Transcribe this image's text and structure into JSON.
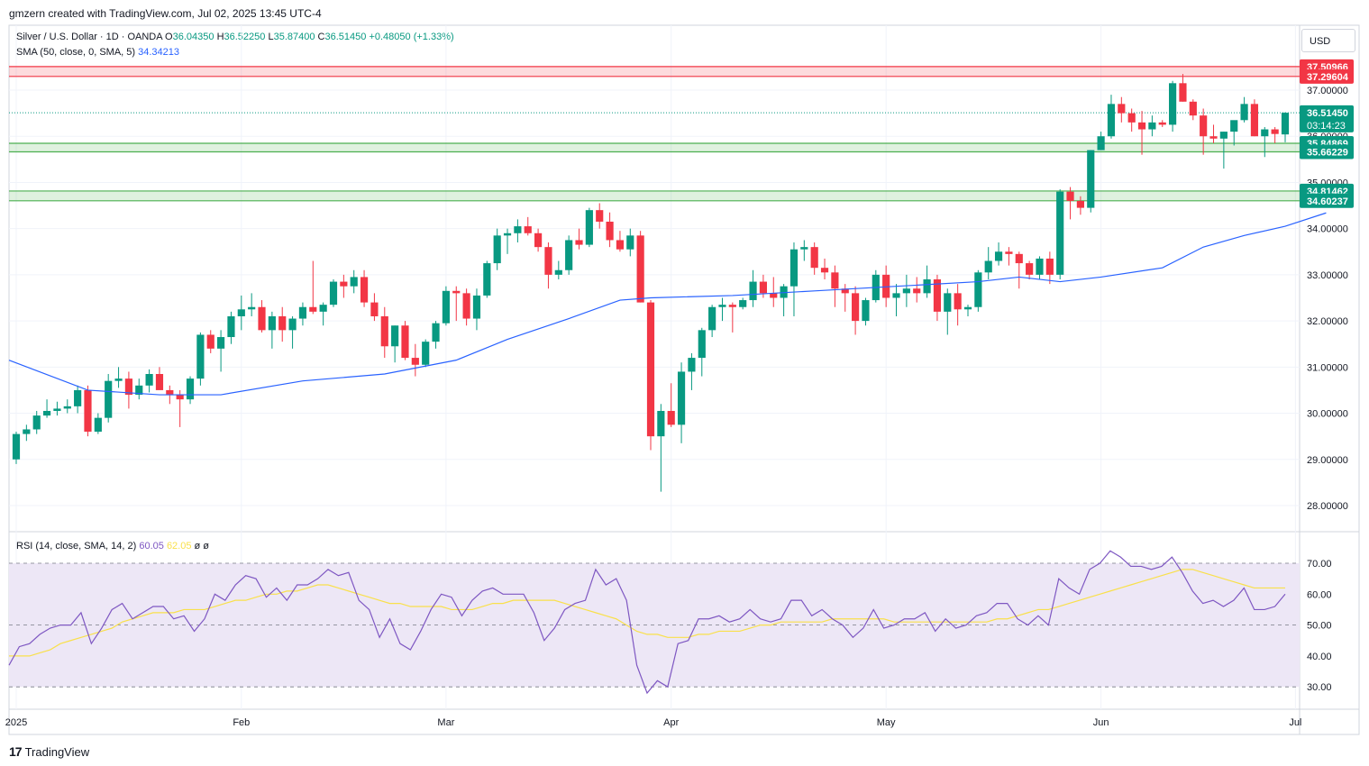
{
  "header": {
    "text": "gmzern created with TradingView.com, Jul 02, 2025 13:45 UTC-4"
  },
  "legend": {
    "symbol": "Silver / U.S. Dollar · 1D · OANDA",
    "o_label": "O",
    "o": "36.04350",
    "h_label": "H",
    "h": "36.52250",
    "l_label": "L",
    "l": "35.87400",
    "c_label": "C",
    "c": "36.51450",
    "change": "+0.48050 (+1.33%)",
    "sma_label": "SMA (50, close, 0, SMA, 5)",
    "sma_value": "34.34213",
    "rsi_label": "RSI (14, close, SMA, 14, 2)",
    "rsi_value": "60.05",
    "rsi_ma_value": "62.05",
    "rsi_extra": "ø ø"
  },
  "currency": "USD",
  "price_axis": {
    "ticks": [
      "37.00000",
      "36.00000",
      "35.00000",
      "34.00000",
      "33.00000",
      "32.00000",
      "31.00000",
      "30.00000",
      "29.00000",
      "28.00000"
    ],
    "tick_values": [
      37,
      36,
      35,
      34,
      33,
      32,
      31,
      30,
      29,
      28
    ],
    "labels": [
      {
        "text": "37.50966",
        "value": 37.50966,
        "color": "#f23645"
      },
      {
        "text": "37.29604",
        "value": 37.29604,
        "color": "#f23645"
      },
      {
        "text": "36.51450",
        "value": 36.5145,
        "color": "#089981",
        "sub": "03:14:23"
      },
      {
        "text": "35.84869",
        "value": 35.84869,
        "color": "#089981"
      },
      {
        "text": "35.66229",
        "value": 35.66229,
        "color": "#089981"
      },
      {
        "text": "34.81462",
        "value": 34.81462,
        "color": "#089981"
      },
      {
        "text": "34.60237",
        "value": 34.60237,
        "color": "#089981"
      }
    ]
  },
  "rsi_axis": {
    "ticks": [
      "70.00",
      "60.00",
      "50.00",
      "40.00",
      "30.00"
    ],
    "tick_values": [
      70,
      60,
      50,
      40,
      30
    ]
  },
  "time_axis": [
    "2025",
    "Feb",
    "Mar",
    "Apr",
    "May",
    "Jun",
    "Jul"
  ],
  "zones": [
    {
      "top": 37.50966,
      "bottom": 37.29604,
      "kind": "resistance"
    },
    {
      "top": 35.84869,
      "bottom": 35.66229,
      "kind": "support"
    },
    {
      "top": 34.81462,
      "bottom": 34.60237,
      "kind": "support"
    }
  ],
  "colors": {
    "up": "#089981",
    "down": "#f23645",
    "sma": "#2962ff",
    "rsi": "#7e57c2",
    "rsi_ma": "#f9e04b",
    "rsi_band": "#ede7f6"
  },
  "chart_data": {
    "type": "candlestick",
    "title": "Silver / U.S. Dollar · 1D · OANDA",
    "ylabel": "USD",
    "ylim": [
      27.3,
      38.2
    ],
    "candles": [
      [
        29.0,
        29.6,
        28.9,
        29.55
      ],
      [
        29.55,
        29.75,
        29.4,
        29.65
      ],
      [
        29.65,
        30.05,
        29.55,
        29.95
      ],
      [
        29.95,
        30.3,
        29.9,
        30.05
      ],
      [
        30.05,
        30.25,
        29.95,
        30.1
      ],
      [
        30.1,
        30.3,
        30.0,
        30.15
      ],
      [
        30.15,
        30.6,
        30.0,
        30.5
      ],
      [
        30.5,
        30.6,
        29.5,
        29.6
      ],
      [
        29.6,
        30.0,
        29.55,
        29.9
      ],
      [
        29.9,
        30.85,
        29.8,
        30.7
      ],
      [
        30.7,
        31.0,
        30.55,
        30.75
      ],
      [
        30.75,
        30.9,
        30.1,
        30.4
      ],
      [
        30.4,
        30.75,
        30.3,
        30.6
      ],
      [
        30.6,
        30.95,
        30.45,
        30.85
      ],
      [
        30.85,
        31.0,
        30.6,
        30.5
      ],
      [
        30.5,
        30.6,
        30.2,
        30.4
      ],
      [
        30.4,
        30.5,
        29.7,
        30.3
      ],
      [
        30.3,
        30.8,
        30.2,
        30.75
      ],
      [
        30.75,
        31.75,
        30.6,
        31.7
      ],
      [
        31.7,
        31.8,
        31.3,
        31.4
      ],
      [
        31.4,
        31.8,
        30.9,
        31.65
      ],
      [
        31.65,
        32.2,
        31.5,
        32.1
      ],
      [
        32.1,
        32.55,
        31.8,
        32.25
      ],
      [
        32.25,
        32.6,
        32.1,
        32.3
      ],
      [
        32.3,
        32.45,
        31.75,
        31.8
      ],
      [
        31.8,
        32.2,
        31.4,
        32.1
      ],
      [
        32.1,
        32.3,
        31.55,
        31.8
      ],
      [
        31.8,
        32.1,
        31.4,
        32.05
      ],
      [
        32.05,
        32.4,
        31.9,
        32.3
      ],
      [
        32.3,
        33.3,
        32.15,
        32.2
      ],
      [
        32.2,
        32.4,
        31.9,
        32.35
      ],
      [
        32.35,
        32.9,
        32.3,
        32.85
      ],
      [
        32.85,
        33.0,
        32.5,
        32.75
      ],
      [
        32.75,
        33.1,
        32.6,
        32.95
      ],
      [
        32.95,
        33.1,
        32.3,
        32.4
      ],
      [
        32.4,
        32.6,
        32.0,
        32.1
      ],
      [
        32.1,
        32.3,
        31.2,
        31.45
      ],
      [
        31.45,
        31.9,
        31.1,
        31.9
      ],
      [
        31.9,
        32.0,
        31.15,
        31.2
      ],
      [
        31.2,
        31.5,
        30.8,
        31.05
      ],
      [
        31.05,
        31.6,
        31.0,
        31.55
      ],
      [
        31.55,
        32.0,
        31.4,
        31.95
      ],
      [
        31.95,
        32.75,
        31.9,
        32.65
      ],
      [
        32.65,
        32.75,
        32.0,
        32.6
      ],
      [
        32.6,
        32.7,
        31.9,
        32.05
      ],
      [
        32.05,
        32.7,
        31.8,
        32.55
      ],
      [
        32.55,
        33.3,
        32.5,
        33.25
      ],
      [
        33.25,
        34.0,
        33.1,
        33.85
      ],
      [
        33.85,
        34.0,
        33.45,
        33.9
      ],
      [
        33.9,
        34.2,
        33.7,
        34.05
      ],
      [
        34.05,
        34.25,
        33.85,
        33.9
      ],
      [
        33.9,
        34.0,
        33.5,
        33.6
      ],
      [
        33.6,
        33.7,
        32.7,
        33.0
      ],
      [
        33.0,
        33.3,
        32.9,
        33.1
      ],
      [
        33.1,
        33.85,
        33.0,
        33.75
      ],
      [
        33.75,
        34.0,
        33.55,
        33.65
      ],
      [
        33.65,
        34.45,
        33.6,
        34.4
      ],
      [
        34.4,
        34.55,
        34.0,
        34.15
      ],
      [
        34.15,
        34.35,
        33.6,
        33.75
      ],
      [
        33.75,
        33.95,
        33.5,
        33.55
      ],
      [
        33.55,
        34.0,
        33.4,
        33.85
      ],
      [
        33.85,
        33.95,
        32.4,
        32.4
      ],
      [
        32.4,
        32.45,
        29.2,
        29.5
      ],
      [
        29.5,
        30.2,
        28.3,
        30.05
      ],
      [
        30.05,
        30.65,
        29.7,
        29.75
      ],
      [
        29.75,
        31.1,
        29.35,
        30.9
      ],
      [
        30.9,
        31.3,
        30.5,
        31.2
      ],
      [
        31.2,
        31.85,
        30.8,
        31.8
      ],
      [
        31.8,
        32.35,
        31.65,
        32.3
      ],
      [
        32.3,
        32.5,
        32.0,
        32.35
      ],
      [
        32.35,
        32.4,
        31.75,
        32.3
      ],
      [
        32.3,
        32.5,
        32.25,
        32.45
      ],
      [
        32.45,
        33.1,
        32.3,
        32.85
      ],
      [
        32.85,
        33.0,
        32.5,
        32.6
      ],
      [
        32.6,
        32.95,
        32.3,
        32.5
      ],
      [
        32.5,
        32.8,
        32.1,
        32.75
      ],
      [
        32.75,
        33.7,
        32.1,
        33.55
      ],
      [
        33.55,
        33.75,
        33.3,
        33.6
      ],
      [
        33.6,
        33.7,
        33.0,
        33.15
      ],
      [
        33.15,
        33.35,
        32.9,
        33.05
      ],
      [
        33.05,
        33.2,
        32.3,
        32.7
      ],
      [
        32.7,
        32.8,
        32.2,
        32.6
      ],
      [
        32.6,
        32.75,
        31.7,
        32.0
      ],
      [
        32.0,
        32.5,
        31.9,
        32.45
      ],
      [
        32.45,
        33.1,
        32.4,
        33.0
      ],
      [
        33.0,
        33.2,
        32.3,
        32.5
      ],
      [
        32.5,
        32.8,
        32.1,
        32.6
      ],
      [
        32.6,
        33.0,
        32.3,
        32.7
      ],
      [
        32.7,
        32.95,
        32.4,
        32.6
      ],
      [
        32.6,
        33.2,
        32.5,
        32.9
      ],
      [
        32.9,
        33.0,
        32.0,
        32.2
      ],
      [
        32.2,
        32.7,
        31.7,
        32.6
      ],
      [
        32.6,
        32.8,
        31.9,
        32.25
      ],
      [
        32.25,
        32.35,
        32.1,
        32.3
      ],
      [
        32.3,
        33.1,
        32.2,
        33.05
      ],
      [
        33.05,
        33.6,
        32.9,
        33.3
      ],
      [
        33.3,
        33.7,
        33.2,
        33.5
      ],
      [
        33.5,
        33.6,
        33.2,
        33.45
      ],
      [
        33.45,
        33.5,
        32.7,
        33.25
      ],
      [
        33.25,
        33.3,
        32.9,
        33.0
      ],
      [
        33.0,
        33.4,
        32.9,
        33.35
      ],
      [
        33.35,
        33.5,
        32.8,
        33.0
      ],
      [
        33.0,
        34.85,
        32.9,
        34.8
      ],
      [
        34.8,
        34.9,
        34.2,
        34.6
      ],
      [
        34.6,
        34.7,
        34.3,
        34.45
      ],
      [
        34.45,
        35.7,
        34.35,
        35.7
      ],
      [
        35.7,
        36.1,
        35.7,
        36.0
      ],
      [
        36.0,
        36.9,
        35.95,
        36.7
      ],
      [
        36.7,
        36.85,
        36.3,
        36.5
      ],
      [
        36.5,
        36.6,
        36.1,
        36.3
      ],
      [
        36.3,
        36.55,
        35.6,
        36.15
      ],
      [
        36.15,
        36.45,
        36.0,
        36.3
      ],
      [
        36.3,
        36.35,
        36.2,
        36.25
      ],
      [
        36.25,
        37.2,
        36.1,
        37.15
      ],
      [
        37.15,
        37.35,
        36.75,
        36.75
      ],
      [
        36.75,
        36.8,
        36.35,
        36.45
      ],
      [
        36.45,
        36.6,
        35.6,
        36.0
      ],
      [
        36.0,
        36.25,
        35.85,
        35.95
      ],
      [
        35.95,
        36.1,
        35.3,
        36.1
      ],
      [
        36.1,
        36.3,
        35.8,
        36.35
      ],
      [
        36.35,
        36.85,
        36.3,
        36.7
      ],
      [
        36.7,
        36.8,
        36.0,
        36.0
      ],
      [
        36.0,
        36.2,
        35.55,
        36.15
      ],
      [
        36.15,
        36.2,
        35.85,
        36.05
      ],
      [
        36.04,
        36.52,
        35.87,
        36.51
      ]
    ],
    "sma": {
      "name": "SMA (50, close, 0, SMA, 5)",
      "points": [
        [
          0,
          31.15
        ],
        [
          7,
          30.5
        ],
        [
          14,
          30.4
        ],
        [
          20,
          30.4
        ],
        [
          28,
          30.7
        ],
        [
          36,
          30.85
        ],
        [
          43,
          31.15
        ],
        [
          48,
          31.6
        ],
        [
          54,
          32.05
        ],
        [
          59,
          32.45
        ],
        [
          62,
          32.5
        ],
        [
          70,
          32.55
        ],
        [
          78,
          32.65
        ],
        [
          86,
          32.75
        ],
        [
          94,
          32.85
        ],
        [
          98,
          32.95
        ],
        [
          102,
          32.85
        ],
        [
          106,
          32.95
        ],
        [
          112,
          33.15
        ],
        [
          116,
          33.6
        ],
        [
          120,
          33.85
        ],
        [
          124,
          34.05
        ],
        [
          128,
          34.34
        ]
      ]
    },
    "rsi": {
      "name": "RSI (14, close, SMA, 14, 2)",
      "ylim": [
        25,
        82
      ],
      "values": [
        37,
        43,
        44,
        47,
        49,
        50,
        50,
        54,
        44,
        49,
        55,
        57,
        52,
        54,
        56,
        56,
        52,
        53,
        48,
        52,
        60,
        58,
        63,
        66,
        65,
        59,
        62,
        58,
        63,
        63,
        65,
        68,
        66,
        67,
        58,
        55,
        46,
        52,
        44,
        42,
        48,
        55,
        60,
        59,
        53,
        58,
        61,
        62,
        60,
        60,
        60,
        54,
        45,
        49,
        55,
        57,
        58,
        68,
        63,
        65,
        58,
        37,
        28,
        32,
        30,
        44,
        45,
        52,
        52,
        53,
        51,
        52,
        55,
        52,
        51,
        52,
        58,
        58,
        53,
        55,
        52,
        50,
        46,
        49,
        55,
        49,
        50,
        52,
        52,
        54,
        48,
        52,
        49,
        50,
        53,
        54,
        57,
        57,
        52,
        50,
        53,
        50,
        65,
        62,
        60,
        68,
        70,
        74,
        72,
        69,
        69,
        68,
        69,
        72,
        67,
        61,
        57,
        58,
        56,
        58,
        62,
        55,
        55,
        56,
        60
      ],
      "ma_values": [
        40,
        40,
        40,
        41,
        42,
        44,
        45,
        46,
        47,
        48,
        49,
        51,
        52,
        53,
        54,
        54,
        54,
        55,
        55,
        55,
        56,
        57,
        58,
        58,
        59,
        60,
        60,
        61,
        61,
        62,
        63,
        63,
        62,
        61,
        60,
        59,
        58,
        57,
        57,
        56,
        56,
        56,
        56,
        55,
        55,
        55,
        56,
        57,
        57,
        58,
        58,
        58,
        58,
        58,
        57,
        56,
        55,
        54,
        53,
        52,
        50,
        48,
        47,
        47,
        46,
        46,
        46,
        47,
        47,
        48,
        48,
        48,
        49,
        50,
        50,
        51,
        51,
        51,
        51,
        51,
        52,
        52,
        52,
        52,
        52,
        52,
        51,
        51,
        51,
        51,
        51,
        51,
        51,
        51,
        51,
        51,
        52,
        52,
        53,
        54,
        55,
        55,
        56,
        57,
        58,
        59,
        60,
        61,
        62,
        63,
        64,
        65,
        66,
        67,
        68,
        68,
        67,
        66,
        65,
        64,
        63,
        62,
        62,
        62,
        62
      ]
    }
  }
}
